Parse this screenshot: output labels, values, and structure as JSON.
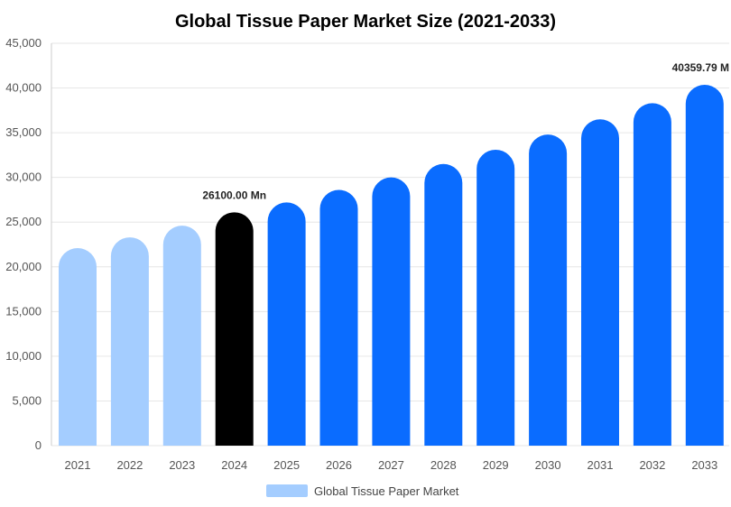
{
  "chart_data": {
    "type": "bar",
    "title": "Global Tissue Paper Market Size (2021-2033)",
    "xlabel": "",
    "ylabel": "",
    "ylim": [
      0,
      45000
    ],
    "y_ticks": [
      "0",
      "5,000",
      "10,000",
      "15,000",
      "20,000",
      "25,000",
      "30,000",
      "35,000",
      "40,000",
      "45,000"
    ],
    "y_tick_values": [
      0,
      5000,
      10000,
      15000,
      20000,
      25000,
      30000,
      35000,
      40000,
      45000
    ],
    "grid": true,
    "legend_position": "bottom-center",
    "categories": [
      "2021",
      "2022",
      "2023",
      "2024",
      "2025",
      "2026",
      "2027",
      "2028",
      "2029",
      "2030",
      "2031",
      "2032",
      "2033"
    ],
    "series": [
      {
        "name": "Global Tissue Paper Market",
        "values": [
          22100,
          23300,
          24600,
          26100,
          27200,
          28600,
          30000,
          31500,
          33100,
          34800,
          36500,
          38300,
          40359.79
        ]
      }
    ],
    "bar_colors": [
      "#a4cdff",
      "#a4cdff",
      "#a4cdff",
      "#000000",
      "#0a6cff",
      "#0a6cff",
      "#0a6cff",
      "#0a6cff",
      "#0a6cff",
      "#0a6cff",
      "#0a6cff",
      "#0a6cff",
      "#0a6cff"
    ],
    "legend_color": "#a4cdff",
    "annotations": [
      {
        "category": "2024",
        "text": "26100.00 Mn"
      },
      {
        "category": "2033",
        "text": "40359.79 M"
      }
    ]
  }
}
